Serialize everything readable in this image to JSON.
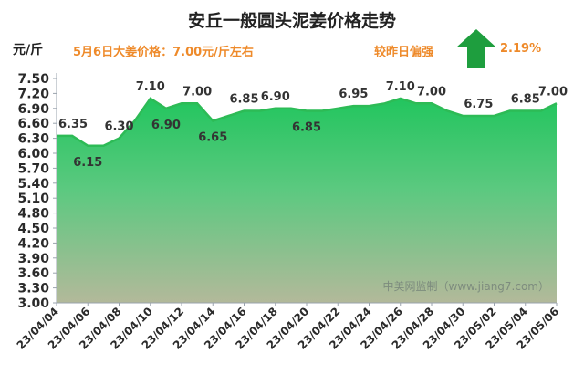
{
  "header": {
    "title": "安丘一般圆头泥姜价格走势",
    "unit": "元/斤",
    "price_note": "5月6日大姜价格：7.00元/斤左右",
    "compare_label": "较昨日偏强",
    "change_value": "2.19%",
    "arrow_icon": "up-arrow-icon",
    "arrow_color": "#1e9e3e",
    "accent_color": "#ee8a2a"
  },
  "chart_data": {
    "type": "area",
    "title": "安丘一般圆头泥姜价格走势",
    "ylabel": "元/斤",
    "ylim": [
      3.0,
      7.5
    ],
    "yticks": [
      "3.00",
      "3.30",
      "3.60",
      "3.90",
      "4.20",
      "4.50",
      "4.80",
      "5.10",
      "5.40",
      "5.70",
      "6.00",
      "6.30",
      "6.60",
      "6.90",
      "7.20",
      "7.50"
    ],
    "xtick_labels": [
      "23/04/04",
      "23/04/06",
      "23/04/08",
      "23/04/10",
      "23/04/12",
      "23/04/14",
      "23/04/16",
      "23/04/18",
      "23/04/20",
      "23/04/22",
      "23/04/24",
      "23/04/26",
      "23/04/28",
      "23/04/30",
      "23/05/02",
      "23/05/04",
      "23/05/06"
    ],
    "x": [
      "23/04/04",
      "23/04/05",
      "23/04/06",
      "23/04/07",
      "23/04/08",
      "23/04/09",
      "23/04/10",
      "23/04/11",
      "23/04/12",
      "23/04/13",
      "23/04/14",
      "23/04/15",
      "23/04/16",
      "23/04/17",
      "23/04/18",
      "23/04/19",
      "23/04/20",
      "23/04/21",
      "23/04/22",
      "23/04/23",
      "23/04/24",
      "23/04/25",
      "23/04/26",
      "23/04/27",
      "23/04/28",
      "23/04/29",
      "23/04/30",
      "23/05/01",
      "23/05/02",
      "23/05/03",
      "23/05/04",
      "23/05/05",
      "23/05/06"
    ],
    "values": [
      6.35,
      6.35,
      6.15,
      6.15,
      6.3,
      6.65,
      7.1,
      6.9,
      7.0,
      7.0,
      6.65,
      6.75,
      6.85,
      6.85,
      6.9,
      6.9,
      6.85,
      6.85,
      6.9,
      6.95,
      6.95,
      7.0,
      7.1,
      7.0,
      7.0,
      6.85,
      6.75,
      6.75,
      6.75,
      6.85,
      6.85,
      6.85,
      7.0
    ],
    "data_labels": [
      {
        "index": 0,
        "text": "6.35"
      },
      {
        "index": 2,
        "text": "6.15"
      },
      {
        "index": 4,
        "text": "6.30"
      },
      {
        "index": 6,
        "text": "7.10"
      },
      {
        "index": 7,
        "text": "6.90"
      },
      {
        "index": 9,
        "text": "7.00"
      },
      {
        "index": 10,
        "text": "6.65"
      },
      {
        "index": 12,
        "text": "6.85"
      },
      {
        "index": 14,
        "text": "6.90"
      },
      {
        "index": 16,
        "text": "6.85"
      },
      {
        "index": 19,
        "text": "6.95"
      },
      {
        "index": 22,
        "text": "7.10"
      },
      {
        "index": 24,
        "text": "7.00"
      },
      {
        "index": 27,
        "text": "6.75"
      },
      {
        "index": 30,
        "text": "6.85"
      },
      {
        "index": 32,
        "text": "7.00"
      }
    ],
    "watermark": "中美网监制（www.jiang7.com）",
    "grid": false,
    "line_color": "#2dbb56",
    "fill_top_color": "#22c55e",
    "fill_bottom_color": "#b3b99a"
  }
}
